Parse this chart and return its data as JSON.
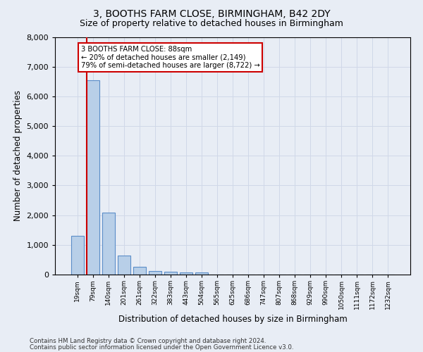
{
  "title1": "3, BOOTHS FARM CLOSE, BIRMINGHAM, B42 2DY",
  "title2": "Size of property relative to detached houses in Birmingham",
  "xlabel": "Distribution of detached houses by size in Birmingham",
  "ylabel": "Number of detached properties",
  "footnote1": "Contains HM Land Registry data © Crown copyright and database right 2024.",
  "footnote2": "Contains public sector information licensed under the Open Government Licence v3.0.",
  "bar_labels": [
    "19sqm",
    "79sqm",
    "140sqm",
    "201sqm",
    "261sqm",
    "322sqm",
    "383sqm",
    "443sqm",
    "504sqm",
    "565sqm",
    "625sqm",
    "686sqm",
    "747sqm",
    "807sqm",
    "868sqm",
    "929sqm",
    "990sqm",
    "1050sqm",
    "1111sqm",
    "1172sqm",
    "1232sqm"
  ],
  "bar_values": [
    1300,
    6550,
    2080,
    640,
    250,
    130,
    100,
    65,
    65,
    0,
    0,
    0,
    0,
    0,
    0,
    0,
    0,
    0,
    0,
    0,
    0
  ],
  "bar_color": "#b8cfe8",
  "bar_edge_color": "#5b8dc8",
  "highlight_bar_index": 1,
  "highlight_line_color": "#cc0000",
  "ylim_max": 8000,
  "yticks": [
    0,
    1000,
    2000,
    3000,
    4000,
    5000,
    6000,
    7000,
    8000
  ],
  "annotation_line1": "3 BOOTHS FARM CLOSE: 88sqm",
  "annotation_line2": "← 20% of detached houses are smaller (2,149)",
  "annotation_line3": "79% of semi-detached houses are larger (8,722) →",
  "annotation_box_color": "#ffffff",
  "annotation_box_edge": "#cc0000",
  "grid_color": "#d0d8e8",
  "bg_color": "#e8edf5",
  "title1_fontsize": 10,
  "title2_fontsize": 9
}
